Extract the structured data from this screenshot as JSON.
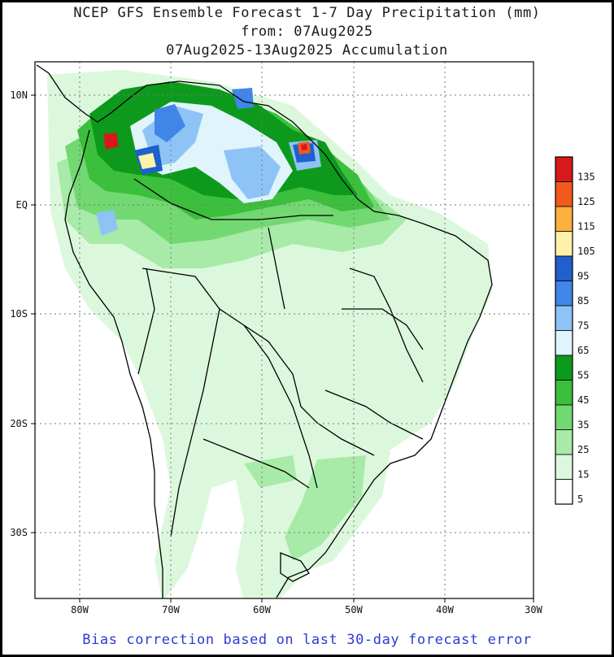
{
  "title": {
    "line1": "NCEP GFS Ensemble Forecast 1-7 Day Precipitation (mm)",
    "line2": "from: 07Aug2025",
    "line3": "07Aug2025-13Aug2025 Accumulation"
  },
  "footer": "Bias correction based on last 30-day forecast error",
  "map": {
    "lat_labels": [
      "10N",
      "EQ",
      "10S",
      "20S",
      "30S"
    ],
    "lon_labels": [
      "80W",
      "70W",
      "60W",
      "50W",
      "40W",
      "30W"
    ]
  },
  "legend": {
    "levels": [
      {
        "label": "135",
        "color": "#d7191c"
      },
      {
        "label": "125",
        "color": "#f05a1c"
      },
      {
        "label": "115",
        "color": "#fbb040"
      },
      {
        "label": "105",
        "color": "#fff2a8"
      },
      {
        "label": "95",
        "color": "#1f5fce"
      },
      {
        "label": "85",
        "color": "#3f86e8"
      },
      {
        "label": "75",
        "color": "#8ec3f5"
      },
      {
        "label": "65",
        "color": "#dff4fb"
      },
      {
        "label": "55",
        "color": "#0d9a1c"
      },
      {
        "label": "45",
        "color": "#3cbf3c"
      },
      {
        "label": "35",
        "color": "#72d872"
      },
      {
        "label": "25",
        "color": "#a8eaa8"
      },
      {
        "label": "15",
        "color": "#dcf8dc"
      },
      {
        "label": "5",
        "color": "#ffffff"
      }
    ]
  }
}
